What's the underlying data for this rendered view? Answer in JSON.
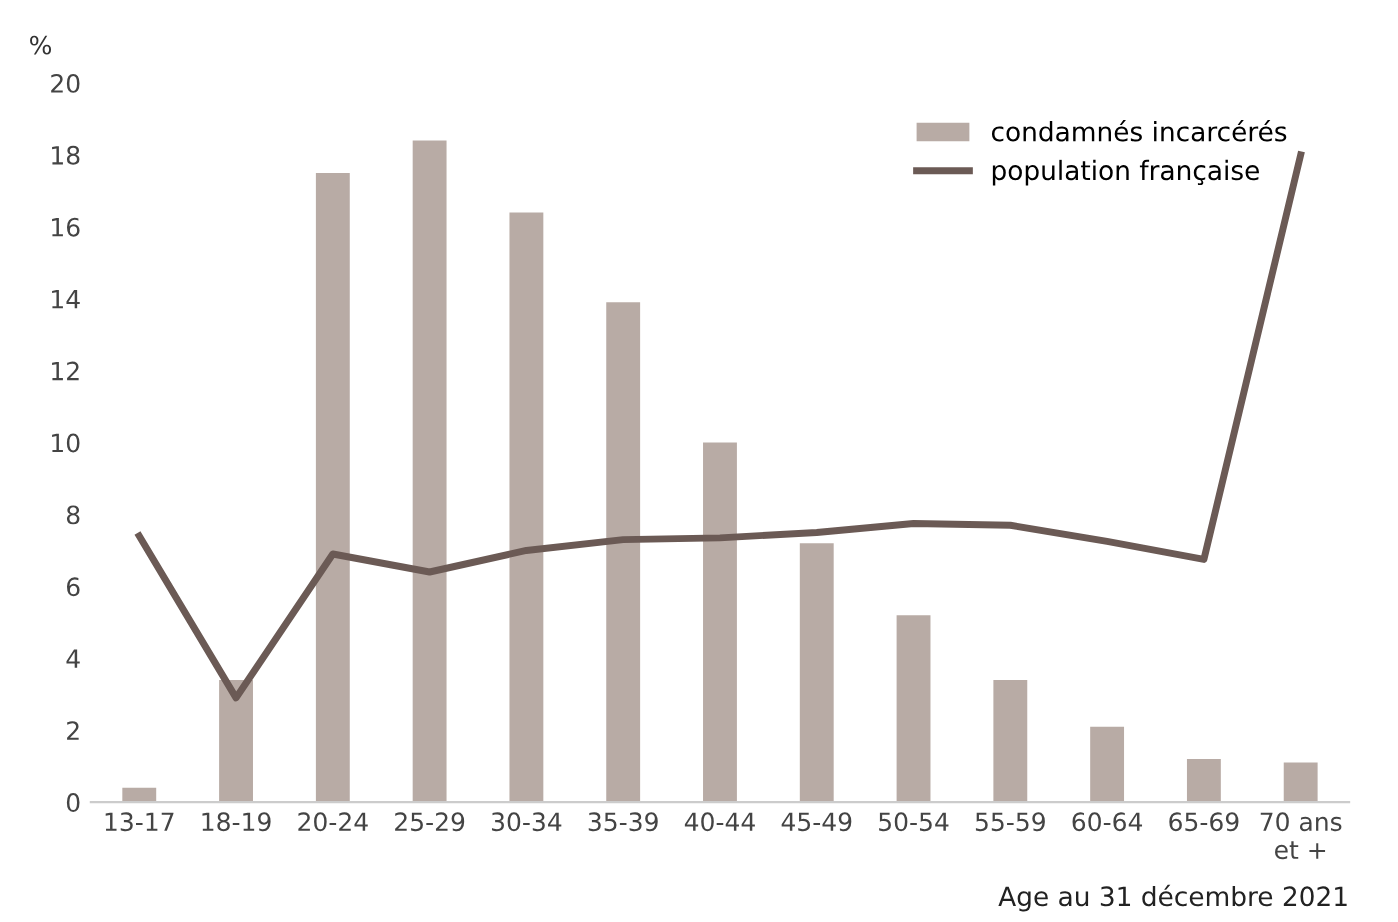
{
  "chart_data": {
    "type": "bar",
    "ylabel": "%",
    "xlabel": "Age au 31 décembre 2021",
    "categories": [
      "13-17",
      "18-19",
      "20-24",
      "25-29",
      "30-34",
      "35-39",
      "40-44",
      "45-49",
      "50-54",
      "55-59",
      "60-64",
      "65-69",
      "70 ans\net +"
    ],
    "series": [
      {
        "name": "condamnés incarcérés",
        "color": "#b8aba5",
        "values": [
          0.4,
          3.4,
          17.5,
          18.4,
          16.4,
          13.9,
          10.0,
          7.2,
          5.2,
          3.4,
          2.1,
          1.2,
          1.1
        ]
      },
      {
        "name": "population française",
        "type": "line",
        "color": "#6b5a55",
        "values": [
          7.4,
          2.9,
          6.9,
          6.4,
          7.0,
          7.3,
          7.35,
          7.5,
          7.75,
          7.7,
          7.25,
          6.75,
          18.0
        ]
      }
    ],
    "ylim": [
      0,
      20
    ],
    "yticks": [
      0,
      2,
      4,
      6,
      8,
      10,
      12,
      14,
      16,
      18,
      20
    ],
    "grid": false,
    "legend": "top right"
  }
}
